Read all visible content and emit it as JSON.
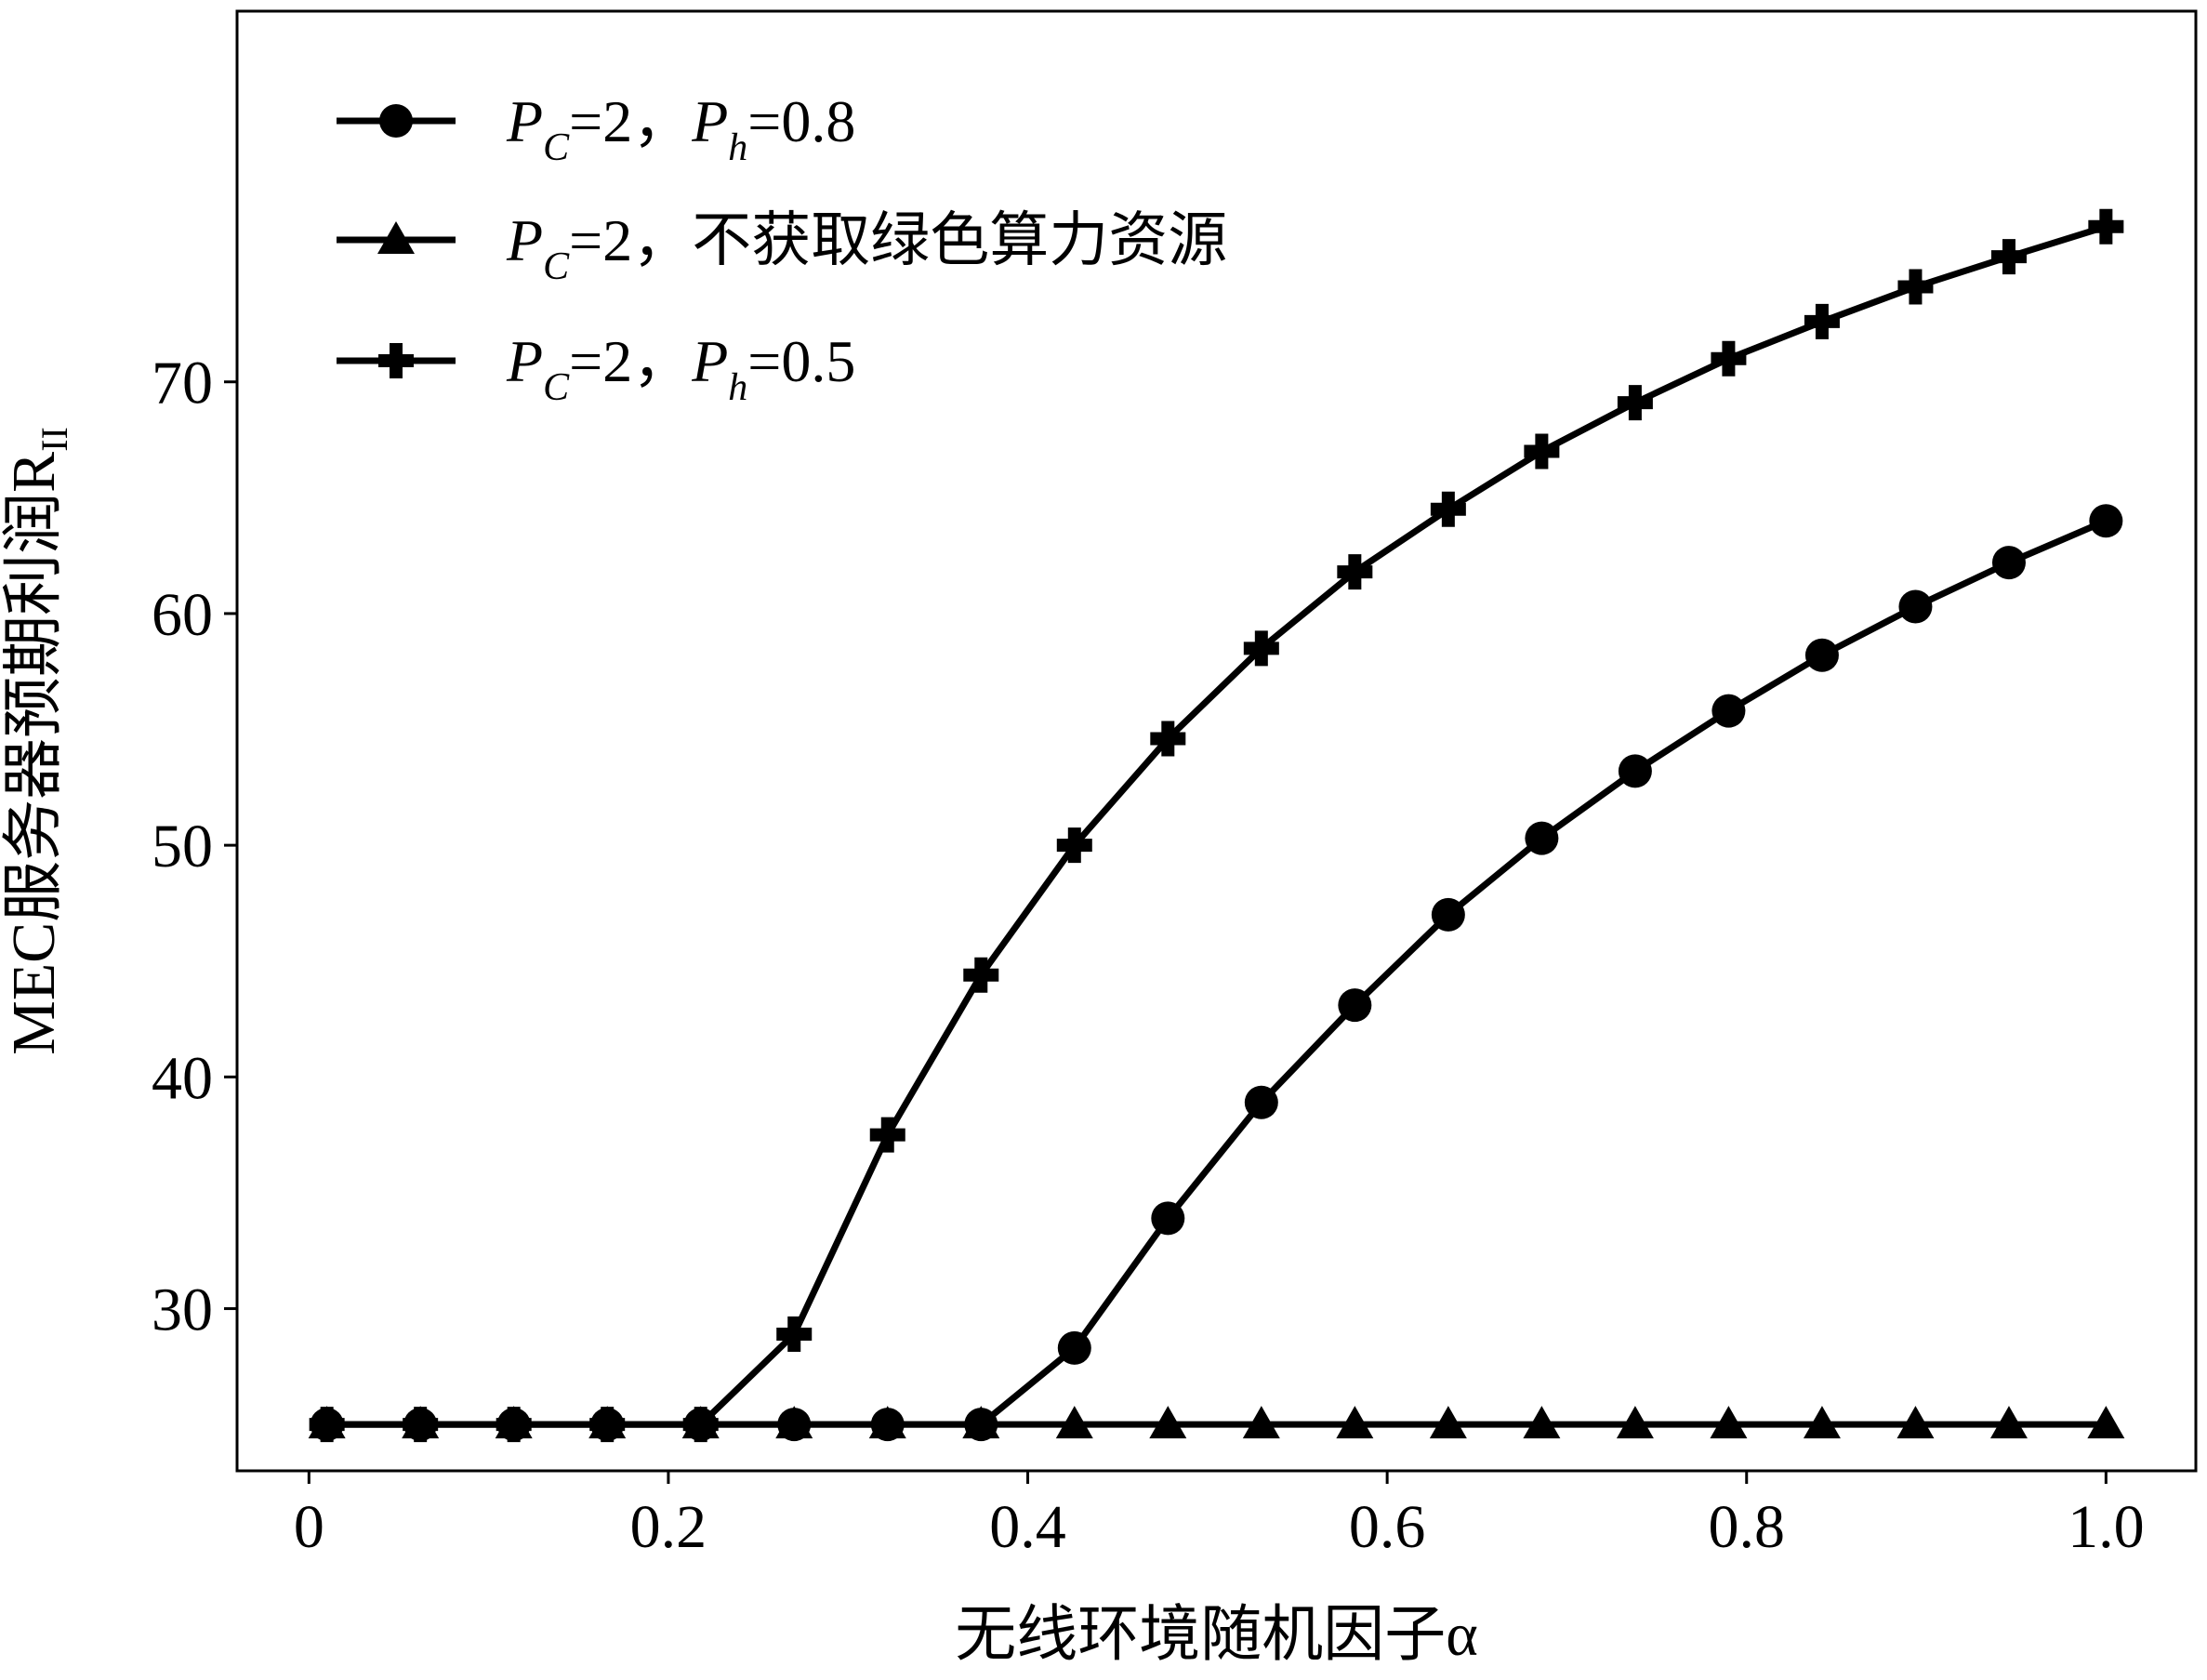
{
  "chart_data": {
    "type": "line",
    "title": "",
    "xlabel": "无线环境随机因子α",
    "ylabel": "MEC服务器预期利润R",
    "ylabel_subscript": "II",
    "xlim": [
      -0.04,
      1.05
    ],
    "ylim": [
      23,
      86
    ],
    "x_ticks": [
      0,
      0.2,
      0.4,
      0.6,
      0.8,
      1.0
    ],
    "x_tick_labels": [
      "0",
      "0.2",
      "0.4",
      "0.6",
      "0.8",
      "1.0"
    ],
    "y_ticks": [
      30,
      40,
      50,
      60,
      70
    ],
    "y_tick_labels": [
      "30",
      "40",
      "50",
      "60",
      "70"
    ],
    "grid": false,
    "legend_position": "upper-left",
    "x": [
      0.01,
      0.062,
      0.114,
      0.166,
      0.218,
      0.27,
      0.322,
      0.374,
      0.426,
      0.478,
      0.53,
      0.582,
      0.634,
      0.686,
      0.738,
      0.79,
      0.842,
      0.894,
      0.946,
      1.0
    ],
    "series": [
      {
        "name": "P_C=2，P_h=0.8",
        "legend": {
          "p1": "P",
          "s1": "C",
          "mid": "=2，",
          "p2": "P",
          "s2": "h",
          "tail": "=0.8"
        },
        "marker": "circle",
        "color": "#000000",
        "values": [
          25,
          25,
          25,
          25,
          25,
          25,
          25,
          25,
          28.3,
          33.9,
          38.9,
          43.1,
          47.0,
          50.3,
          53.2,
          55.8,
          58.2,
          60.3,
          62.2,
          64.0
        ]
      },
      {
        "name": "P_C=2，不获取绿色算力资源",
        "legend": {
          "p1": "P",
          "s1": "C",
          "mid": "=2，",
          "p2": "",
          "s2": "",
          "tail": "不获取绿色算力资源"
        },
        "marker": "triangle",
        "color": "#000000",
        "values": [
          25,
          25,
          25,
          25,
          25,
          25,
          25,
          25,
          25,
          25,
          25,
          25,
          25,
          25,
          25,
          25,
          25,
          25,
          25,
          25
        ]
      },
      {
        "name": "P_C=2，P_h=0.5",
        "legend": {
          "p1": "P",
          "s1": "C",
          "mid": "=2，",
          "p2": "P",
          "s2": "h",
          "tail": "=0.5"
        },
        "marker": "plus",
        "color": "#000000",
        "values": [
          25,
          25,
          25,
          25,
          25,
          28.9,
          37.5,
          44.4,
          50.0,
          54.6,
          58.5,
          61.8,
          64.5,
          67.0,
          69.1,
          71.0,
          72.6,
          74.1,
          75.4,
          76.7
        ]
      }
    ]
  }
}
